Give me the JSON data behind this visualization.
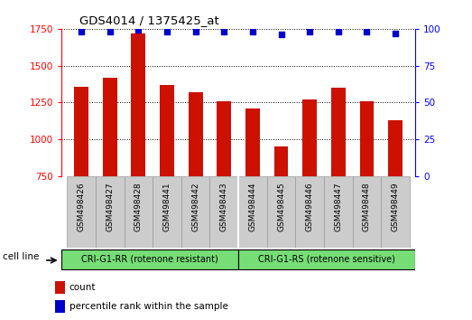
{
  "title": "GDS4014 / 1375425_at",
  "categories": [
    "GSM498426",
    "GSM498427",
    "GSM498428",
    "GSM498441",
    "GSM498442",
    "GSM498443",
    "GSM498444",
    "GSM498445",
    "GSM498446",
    "GSM498447",
    "GSM498448",
    "GSM498449"
  ],
  "bar_values": [
    1355,
    1415,
    1720,
    1370,
    1320,
    1255,
    1210,
    950,
    1270,
    1350,
    1255,
    1130
  ],
  "percentile_values": [
    98,
    98,
    99,
    98,
    98,
    98,
    98,
    96,
    98,
    98,
    98,
    97
  ],
  "bar_color": "#cc1100",
  "dot_color": "#0000cc",
  "ylim_left": [
    750,
    1750
  ],
  "ylim_right": [
    0,
    100
  ],
  "yticks_left": [
    750,
    1000,
    1250,
    1500,
    1750
  ],
  "yticks_right": [
    0,
    25,
    50,
    75,
    100
  ],
  "group1_label": "CRI-G1-RR (rotenone resistant)",
  "group2_label": "CRI-G1-RS (rotenone sensitive)",
  "group1_count": 6,
  "group2_count": 6,
  "cell_line_label": "cell line",
  "legend_bar_label": "count",
  "legend_dot_label": "percentile rank within the sample",
  "background_color": "#ffffff",
  "plot_bg_color": "#ffffff",
  "group_bg_color": "#77dd77",
  "tick_label_bg": "#cccccc"
}
